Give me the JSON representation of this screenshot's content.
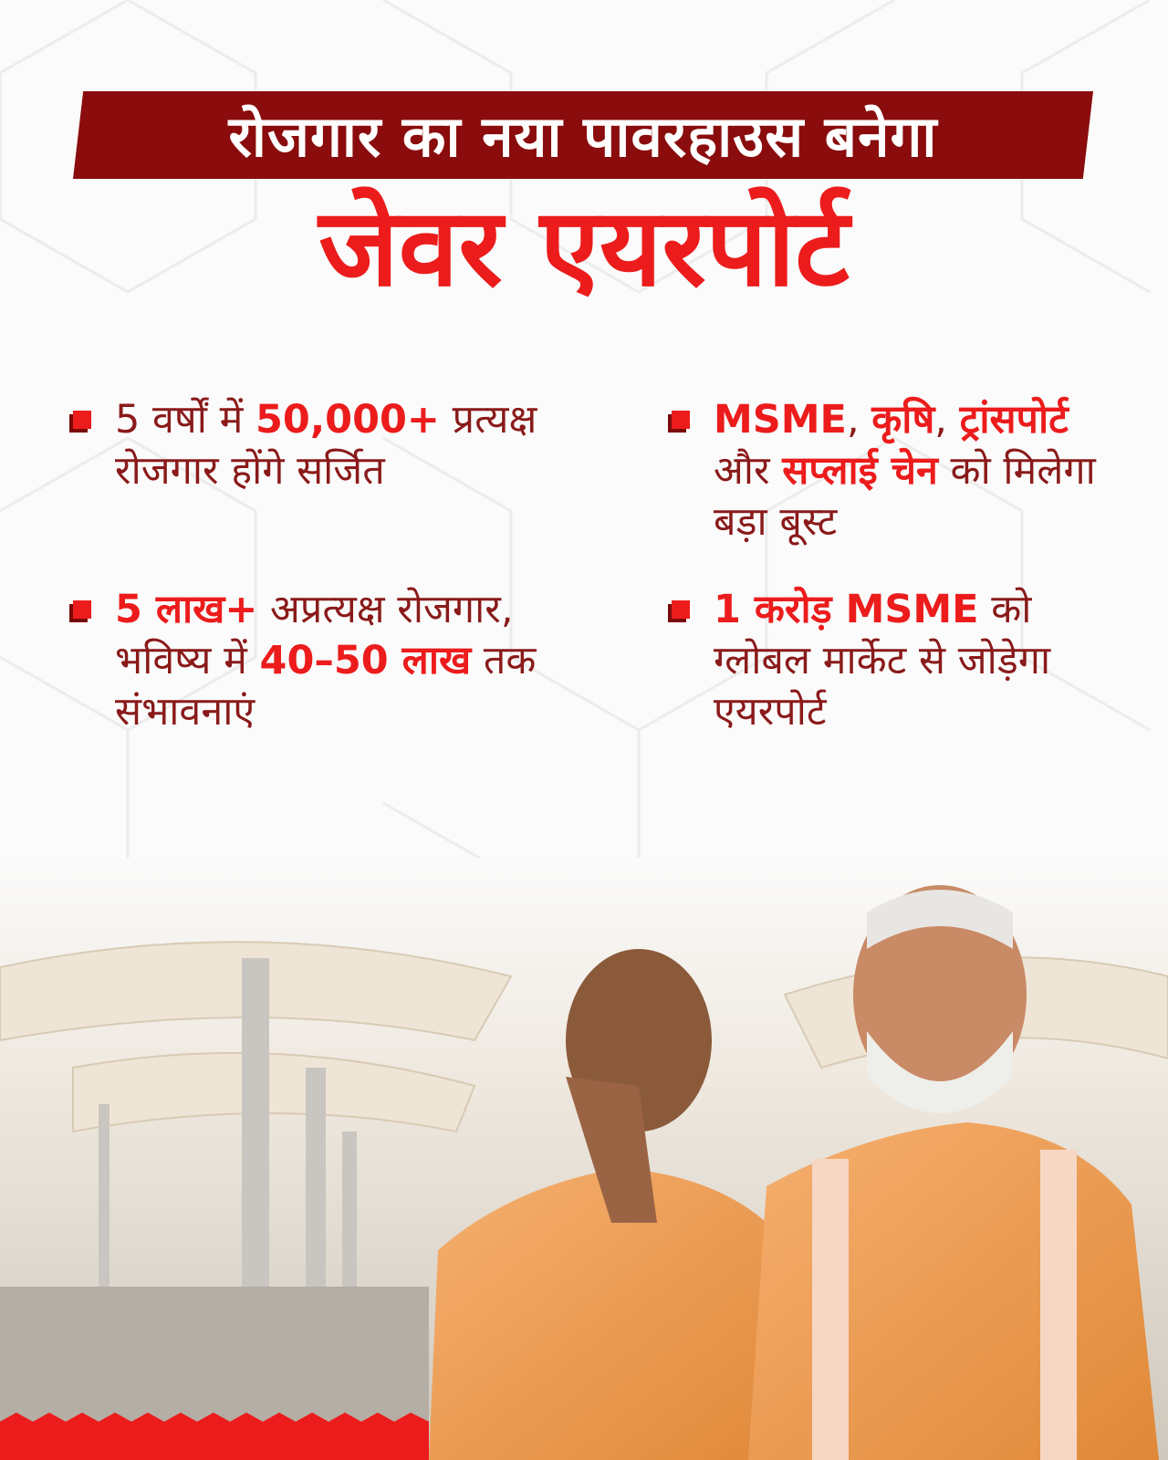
{
  "header": {
    "banner_text": "रोजगार का नया पावरहाउस बनेगा",
    "title": "जेवर एयरपोर्ट"
  },
  "bullets": [
    {
      "parts": [
        "5 वर्षों में ",
        "50,000+",
        " प्रत्यक्ष रोजगार होंगे सर्जित"
      ]
    },
    {
      "parts": [
        "MSME",
        ", ",
        "कृषि",
        ", ",
        "ट्रांसपोर्ट",
        " और ",
        "सप्लाई चेन",
        " को मिलेगा बड़ा बूस्ट"
      ]
    },
    {
      "parts": [
        "5 लाख+",
        " अप्रत्यक्ष रोजगार, भविष्य में ",
        "40–50 लाख",
        " तक संभावनाएं"
      ]
    },
    {
      "parts": [
        "1 करोड़ MSME",
        " को ग्लोबल मार्केट से जोड़ेगा एयरपोर्ट"
      ]
    }
  ],
  "colors": {
    "accent": "#ec1c1c",
    "banner": "#8a0c0c",
    "text": "#8a1a1a",
    "saffron": "#f0a050"
  },
  "images": {
    "photo": "airport-canopy-with-two-leaders-in-saffron"
  }
}
